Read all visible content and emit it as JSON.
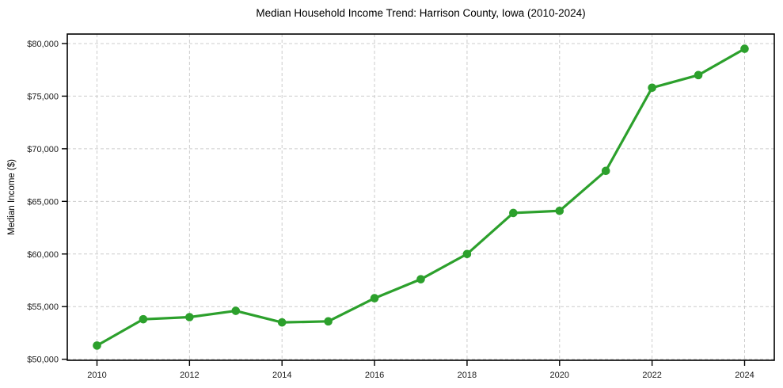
{
  "chart_data": {
    "type": "line",
    "title": "Median Household Income Trend: Harrison County, Iowa (2010-2024)",
    "xlabel": "",
    "ylabel": "Median Income ($)",
    "x": [
      2010,
      2011,
      2012,
      2013,
      2014,
      2015,
      2016,
      2017,
      2018,
      2019,
      2020,
      2021,
      2022,
      2023,
      2024
    ],
    "values": [
      51300,
      53800,
      54000,
      54600,
      53500,
      53600,
      55800,
      57600,
      60000,
      63900,
      64100,
      67900,
      75800,
      77000,
      79500
    ],
    "xticks": [
      2010,
      2012,
      2014,
      2016,
      2018,
      2020,
      2022,
      2024
    ],
    "xtick_labels": [
      "2010",
      "2012",
      "2014",
      "2016",
      "2018",
      "2020",
      "2022",
      "2024"
    ],
    "yticks": [
      50000,
      55000,
      60000,
      65000,
      70000,
      75000,
      80000
    ],
    "ytick_labels": [
      "$50,000",
      "$55,000",
      "$60,000",
      "$65,000",
      "$70,000",
      "$75,000",
      "$80,000"
    ],
    "ylim": [
      49900,
      80900
    ],
    "xlim_years": [
      2010,
      2024
    ],
    "grid": true,
    "grid_style": "dashed",
    "legend": "none",
    "line_color": "#2ca02c",
    "marker": "circle",
    "marker_color": "#2ca02c",
    "grid_color": "#cccccc",
    "spine_color": "#000000",
    "background": "#ffffff"
  }
}
